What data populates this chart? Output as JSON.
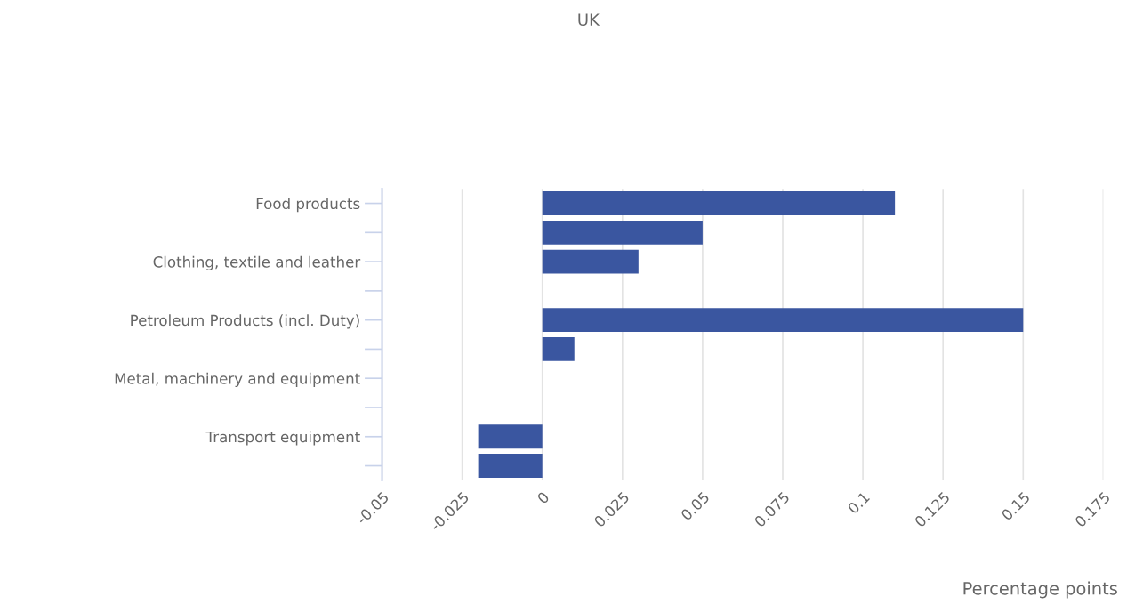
{
  "chart_data": {
    "type": "bar",
    "orientation": "horizontal",
    "title": "UK",
    "xlabel": "Percentage points",
    "categories": [
      "Food products",
      null,
      "Clothing, textile and leather",
      null,
      "Petroleum Products (incl. Duty)",
      null,
      "Metal, machinery and equipment",
      null,
      "Transport equipment",
      null
    ],
    "values": [
      0.11,
      0.05,
      0.03,
      null,
      0.15,
      0.01,
      null,
      null,
      -0.02,
      -0.02
    ],
    "color": "#3a56a0",
    "xlim": [
      -0.05,
      0.175
    ],
    "xticks": [
      -0.05,
      -0.025,
      0,
      0.025,
      0.05,
      0.075,
      0.1,
      0.125,
      0.15,
      0.175
    ],
    "grid": "x"
  }
}
